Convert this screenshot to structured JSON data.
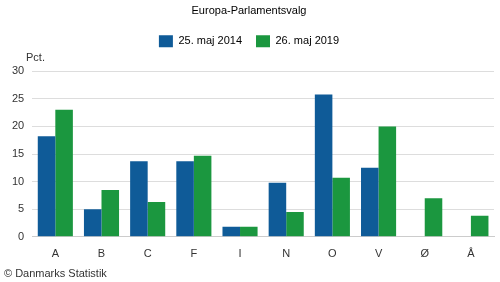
{
  "chart_data": {
    "type": "bar",
    "title": "Europa-Parlamentsvalg",
    "ylabel": "Pct.",
    "source": "© Danmarks Statistik",
    "categories": [
      "A",
      "B",
      "C",
      "F",
      "I",
      "N",
      "O",
      "V",
      "Ø",
      "Å"
    ],
    "series": [
      {
        "name": "25. maj 2014",
        "color": "#0f5b98",
        "values": [
          18.2,
          5.0,
          13.7,
          13.7,
          1.8,
          9.8,
          25.8,
          12.5,
          null,
          null
        ]
      },
      {
        "name": "26. maj 2019",
        "color": "#1b973f",
        "values": [
          23.0,
          8.5,
          6.3,
          14.7,
          1.8,
          4.5,
          10.7,
          20.0,
          7.0,
          3.8
        ]
      }
    ],
    "ylim": [
      0,
      30
    ],
    "yticks": [
      0,
      5,
      10,
      15,
      20,
      25,
      30
    ],
    "grid": true,
    "legend": "top"
  }
}
